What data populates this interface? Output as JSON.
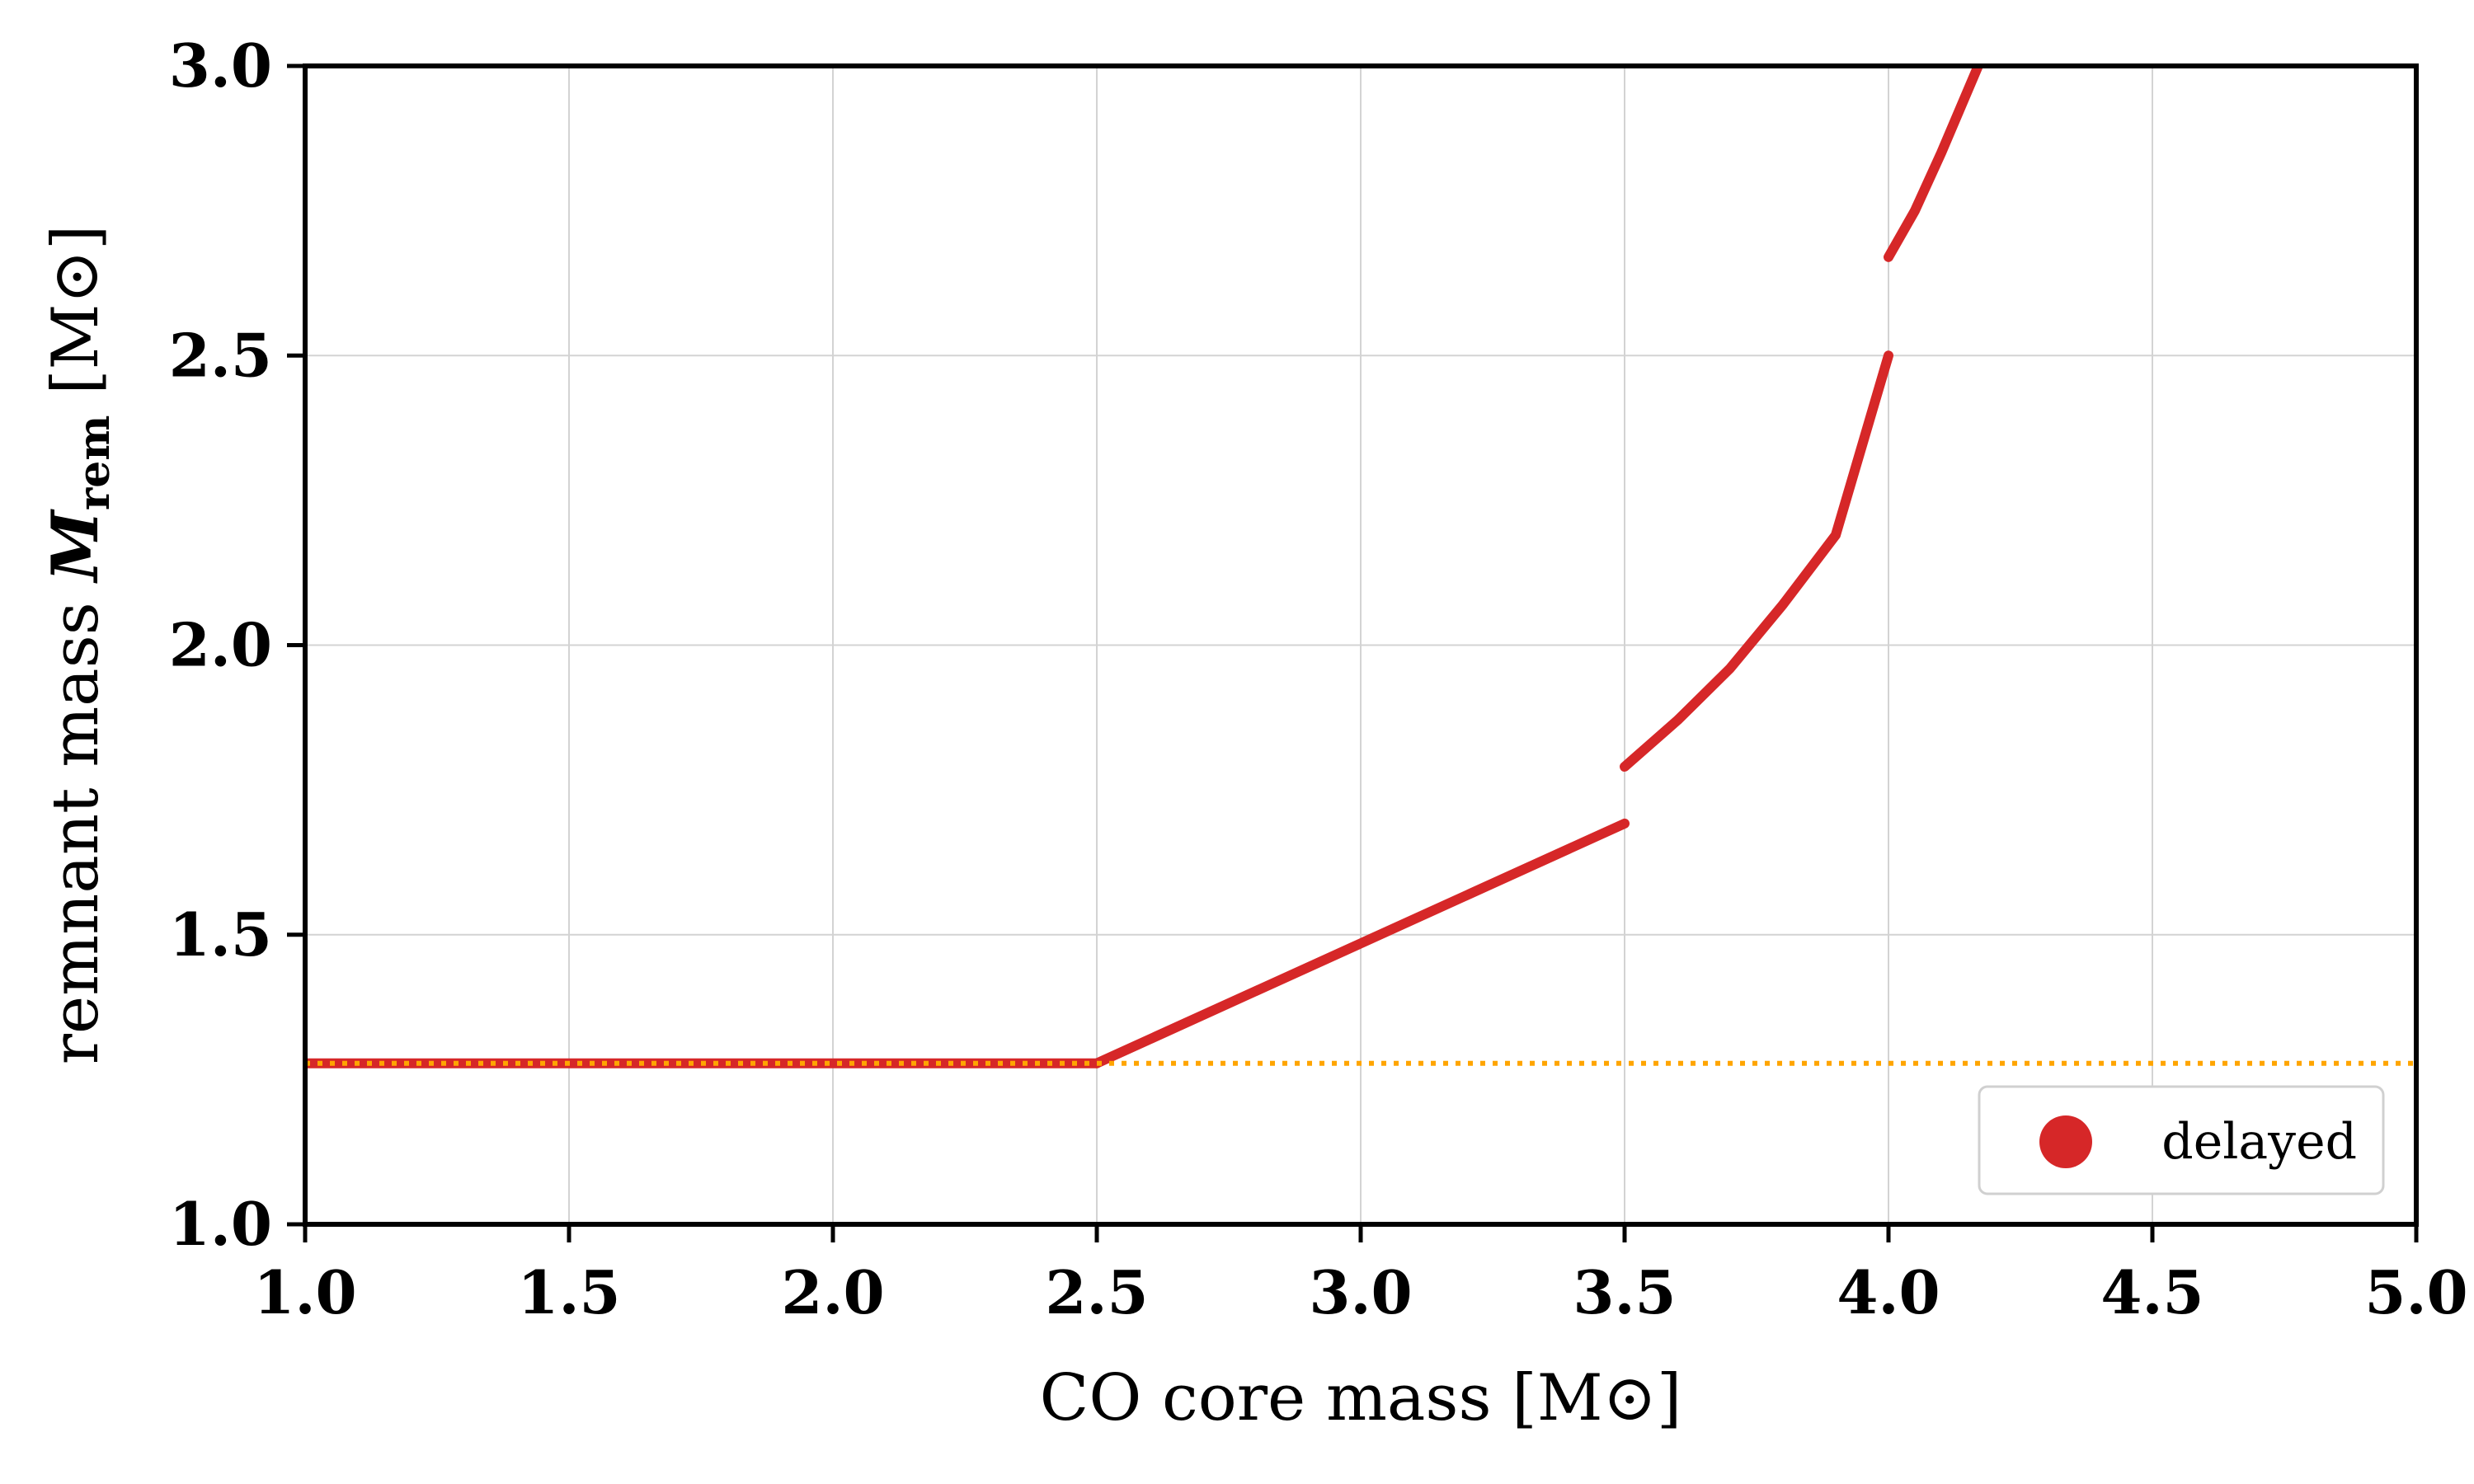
{
  "chart_data": {
    "type": "line",
    "xlabel": "CO core mass [M⊙]",
    "ylabel_prefix": "remnant mass ",
    "ylabel_symbol": "M",
    "ylabel_subscript": "rem",
    "ylabel_unit": " [M⊙]",
    "xlim": [
      1.0,
      5.0
    ],
    "ylim": [
      1.0,
      3.0
    ],
    "xticks": [
      1.0,
      1.5,
      2.0,
      2.5,
      3.0,
      3.5,
      4.0,
      4.5,
      5.0
    ],
    "yticks": [
      1.0,
      1.5,
      2.0,
      2.5,
      3.0
    ],
    "xtick_labels": [
      "1.0",
      "1.5",
      "2.0",
      "2.5",
      "3.0",
      "3.5",
      "4.0",
      "4.5",
      "5.0"
    ],
    "ytick_labels": [
      "1.0",
      "1.5",
      "2.0",
      "2.5",
      "3.0"
    ],
    "grid": true,
    "legend_position": "lower-right",
    "series": [
      {
        "name": "delayed",
        "color": "#d62728",
        "segments": [
          [
            [
              1.0,
              1.278
            ],
            [
              2.5,
              1.278
            ]
          ],
          [
            [
              2.5,
              1.278
            ],
            [
              3.0,
              1.485
            ],
            [
              3.5,
              1.692
            ]
          ],
          [
            [
              3.5,
              1.79
            ],
            [
              3.6,
              1.87
            ],
            [
              3.7,
              1.96
            ],
            [
              3.8,
              2.07
            ],
            [
              3.9,
              2.19
            ],
            [
              4.0,
              2.5
            ]
          ],
          [
            [
              4.0,
              2.67
            ],
            [
              4.05,
              2.75
            ],
            [
              4.1,
              2.85
            ],
            [
              4.17,
              3.0
            ]
          ]
        ]
      },
      {
        "color": "#ffa500",
        "style": "dotted",
        "segments": [
          [
            [
              1.0,
              1.278
            ],
            [
              5.0,
              1.278
            ]
          ]
        ]
      }
    ]
  }
}
